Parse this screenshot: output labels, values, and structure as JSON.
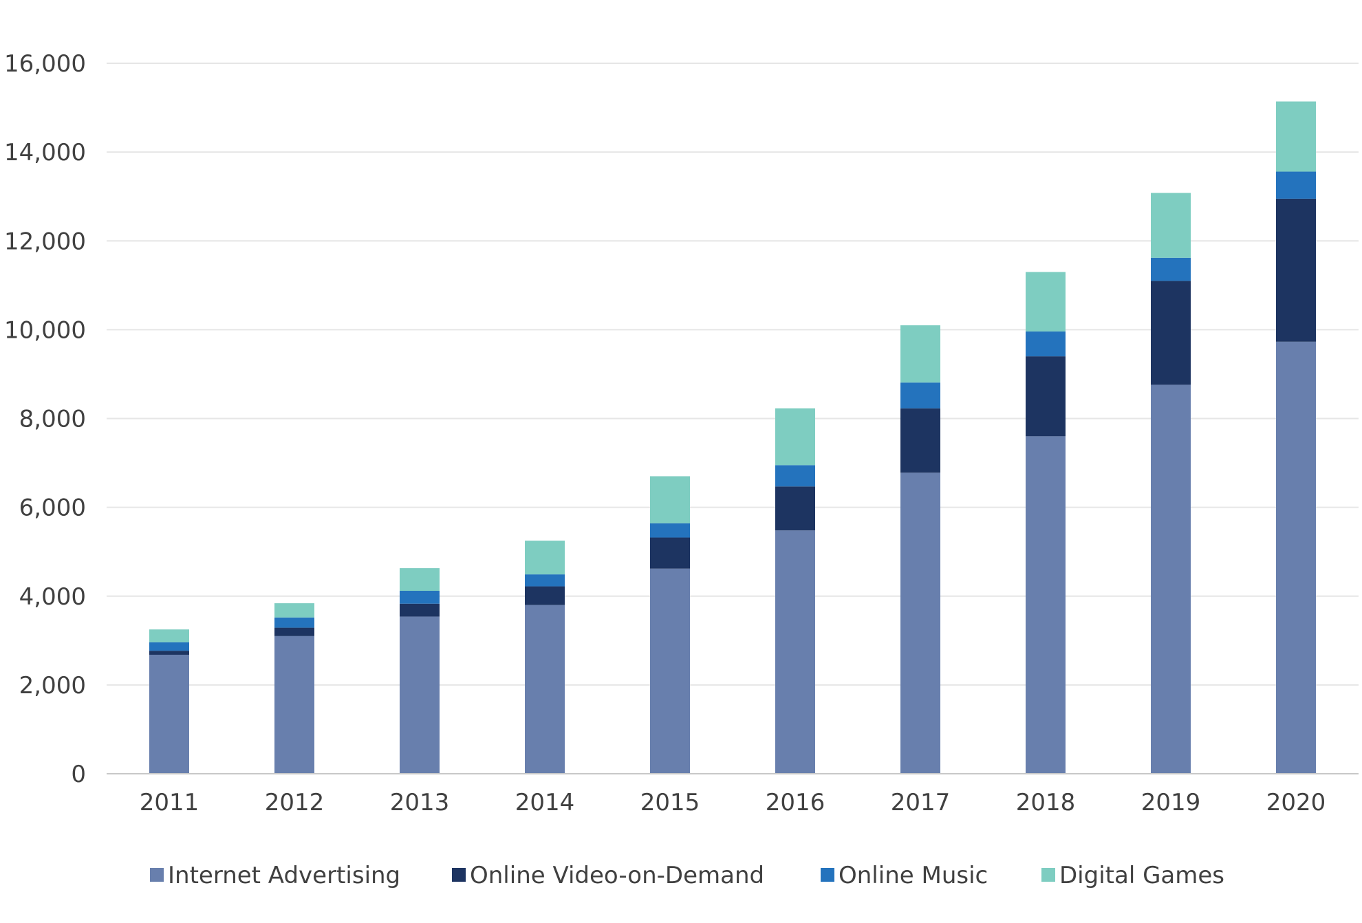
{
  "chart_data": {
    "type": "bar",
    "stacked": true,
    "title": "",
    "xlabel": "",
    "ylabel": "",
    "categories": [
      "2011",
      "2012",
      "2013",
      "2014",
      "2015",
      "2016",
      "2017",
      "2018",
      "2019",
      "2020"
    ],
    "ylim": [
      0,
      16000
    ],
    "yticks": [
      0,
      2000,
      4000,
      6000,
      8000,
      10000,
      12000,
      14000,
      16000
    ],
    "ytick_labels": [
      "0",
      "2,000",
      "4,000",
      "6,000",
      "8,000",
      "10,000",
      "12,000",
      "14,000",
      "16,000"
    ],
    "grid": true,
    "legend_position": "bottom",
    "series": [
      {
        "name": "Internet Advertising",
        "color": "#687fad",
        "values": [
          2680,
          3100,
          3540,
          3800,
          4620,
          5480,
          6780,
          7600,
          8760,
          9730
        ]
      },
      {
        "name": "Online Video-on-Demand",
        "color": "#1d3461",
        "values": [
          90,
          190,
          290,
          420,
          700,
          990,
          1450,
          1800,
          2340,
          3220
        ]
      },
      {
        "name": "Online Music",
        "color": "#2473bd",
        "values": [
          190,
          230,
          290,
          270,
          320,
          480,
          580,
          560,
          520,
          610
        ]
      },
      {
        "name": "Digital Games",
        "color": "#7ecdc1",
        "values": [
          290,
          320,
          510,
          760,
          1060,
          1280,
          1290,
          1340,
          1460,
          1580
        ]
      }
    ]
  }
}
